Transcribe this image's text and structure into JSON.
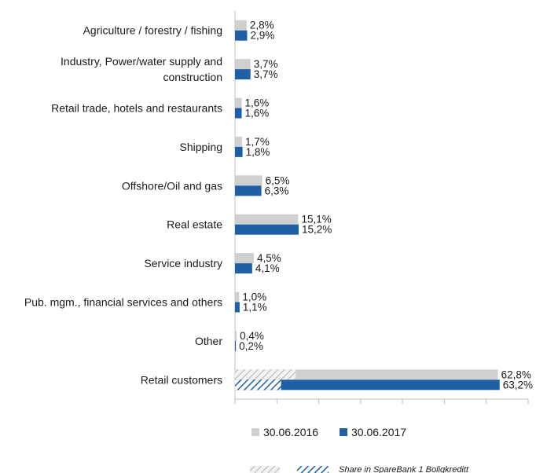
{
  "chart_data": {
    "type": "bar",
    "orientation": "horizontal",
    "categories": [
      [
        "Agriculture / forestry / fishing"
      ],
      [
        "Industry, Power/water supply and",
        "construction"
      ],
      [
        "Retail trade, hotels and restaurants"
      ],
      [
        "Shipping"
      ],
      [
        "Offshore/Oil and gas"
      ],
      [
        "Real estate"
      ],
      [
        "Service industry"
      ],
      [
        "Pub. mgm., financial services and others"
      ],
      [
        "Other"
      ],
      [
        "Retail customers"
      ]
    ],
    "series": [
      {
        "name": "30.06.2016",
        "color": "#d0d0d0",
        "values": [
          2.8,
          3.7,
          1.6,
          1.7,
          6.5,
          15.1,
          4.5,
          1.0,
          0.4,
          62.8
        ],
        "labels": [
          "2,8%",
          "3,7%",
          "1,6%",
          "1,7%",
          "6,5%",
          "15,1%",
          "4,5%",
          "1,0%",
          "0,4%",
          "62,8%"
        ]
      },
      {
        "name": "30.06.2017",
        "color": "#1f5fa6",
        "values": [
          2.9,
          3.7,
          1.6,
          1.8,
          6.3,
          15.2,
          4.1,
          1.1,
          0.2,
          63.2
        ],
        "labels": [
          "2,9%",
          "3,7%",
          "1,6%",
          "1,8%",
          "6,3%",
          "15,2%",
          "4,1%",
          "1,1%",
          "0,2%",
          "63,2%"
        ]
      }
    ],
    "hatched_share": {
      "label": "Share in SpareBank 1 Boligkreditt",
      "category_index": 9,
      "values": [
        14.5,
        11.0
      ]
    },
    "xlim": [
      0,
      70
    ],
    "tick_step": 10,
    "grid": false,
    "legend_position": "bottom"
  }
}
